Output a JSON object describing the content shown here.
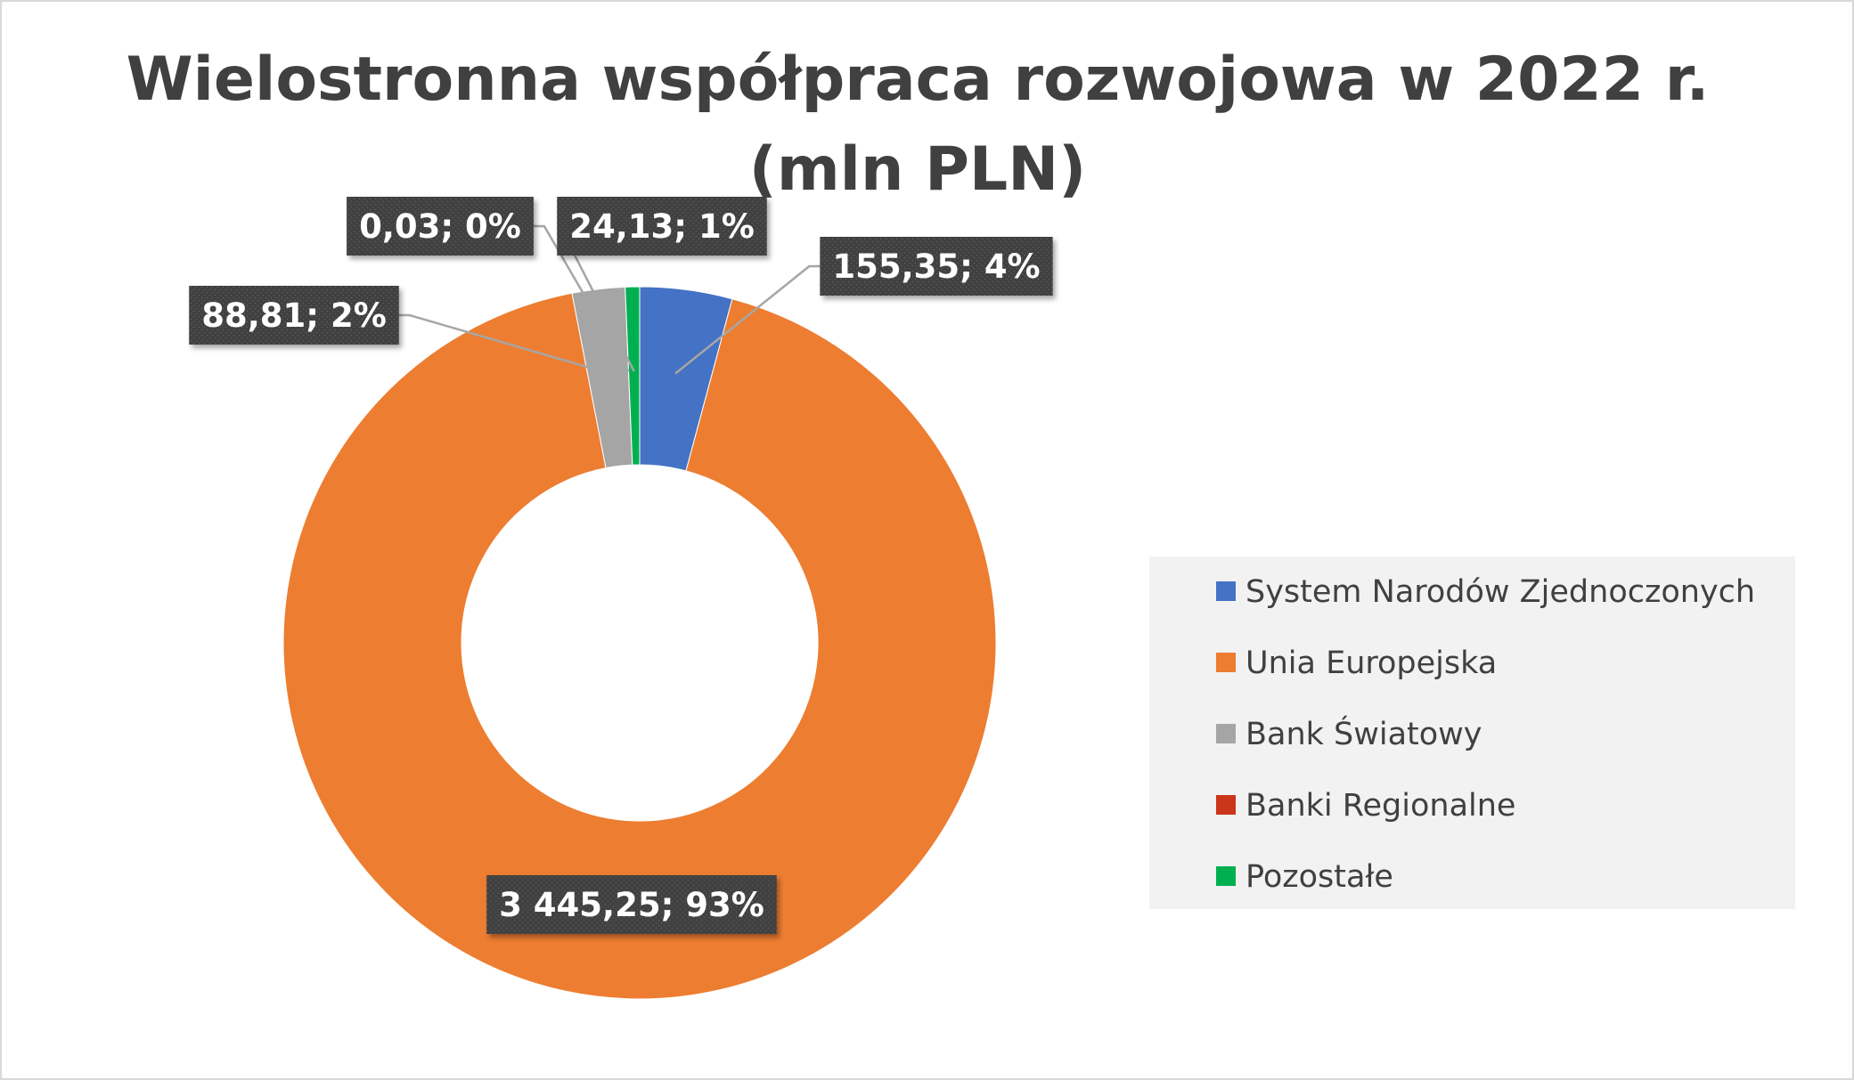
{
  "chart_data": {
    "type": "doughnut",
    "title": "Wielostronna współpraca rozwojowa w 2022 r. (mln PLN)",
    "title_lines": [
      "Wielostronna współpraca rozwojowa w 2022 r.",
      "(mln PLN)"
    ],
    "series": [
      {
        "name": "System Narodów Zjednoczonych",
        "value": 155.35,
        "label": "155,35; 4%",
        "color": "#4472C4"
      },
      {
        "name": "Unia Europejska",
        "value": 3445.25,
        "label": "3 445,25; 93%",
        "color": "#ED7D31"
      },
      {
        "name": "Bank Światowy",
        "value": 88.81,
        "label": "88,81; 2%",
        "color": "#A5A5A5"
      },
      {
        "name": "Banki Regionalne",
        "value": 0.03,
        "label": "0,03; 0%",
        "color": "#C9361A"
      },
      {
        "name": "Pozostałe",
        "value": 24.13,
        "label": "24,13; 1%",
        "color": "#00B050"
      }
    ],
    "legend_position": "right",
    "label_box_color": "#404040"
  }
}
